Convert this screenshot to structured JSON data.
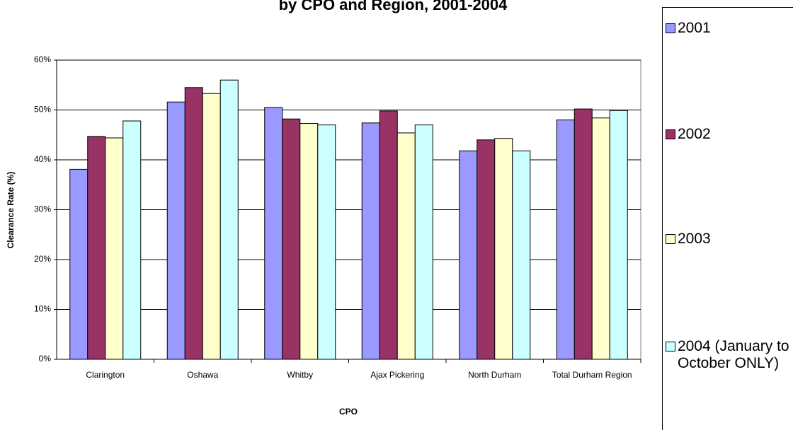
{
  "chart_data": {
    "type": "bar",
    "title": "by CPO and Region, 2001-2004",
    "x_label": "CPO",
    "y_label": "Clearance Rate (%)",
    "categories": [
      "Clarington",
      "Oshawa",
      "Whitby",
      "Ajax Pickering",
      "North Durham",
      "Total Durham Region"
    ],
    "series": [
      {
        "name": "2001",
        "color": "#9999ff",
        "values": [
          38.1,
          51.6,
          50.5,
          47.4,
          41.8,
          48.0
        ]
      },
      {
        "name": "2002",
        "color": "#993366",
        "values": [
          44.7,
          54.5,
          48.2,
          49.8,
          44.0,
          50.2
        ]
      },
      {
        "name": "2003",
        "color": "#ffffcc",
        "values": [
          44.4,
          53.3,
          47.3,
          45.4,
          44.3,
          48.4
        ]
      },
      {
        "name": "2004 (January to October ONLY)",
        "color": "#ccffff",
        "values": [
          47.8,
          56.0,
          47.0,
          47.0,
          41.8,
          49.9
        ]
      }
    ],
    "ylim": [
      0,
      60
    ],
    "yticks": [
      {
        "value": 0,
        "label": "0%"
      },
      {
        "value": 10,
        "label": "10%"
      },
      {
        "value": 20,
        "label": "20%"
      },
      {
        "value": 30,
        "label": "30%"
      },
      {
        "value": 40,
        "label": "40%"
      },
      {
        "value": 50,
        "label": "50%"
      },
      {
        "value": 60,
        "label": "60%"
      }
    ],
    "grid": true
  }
}
